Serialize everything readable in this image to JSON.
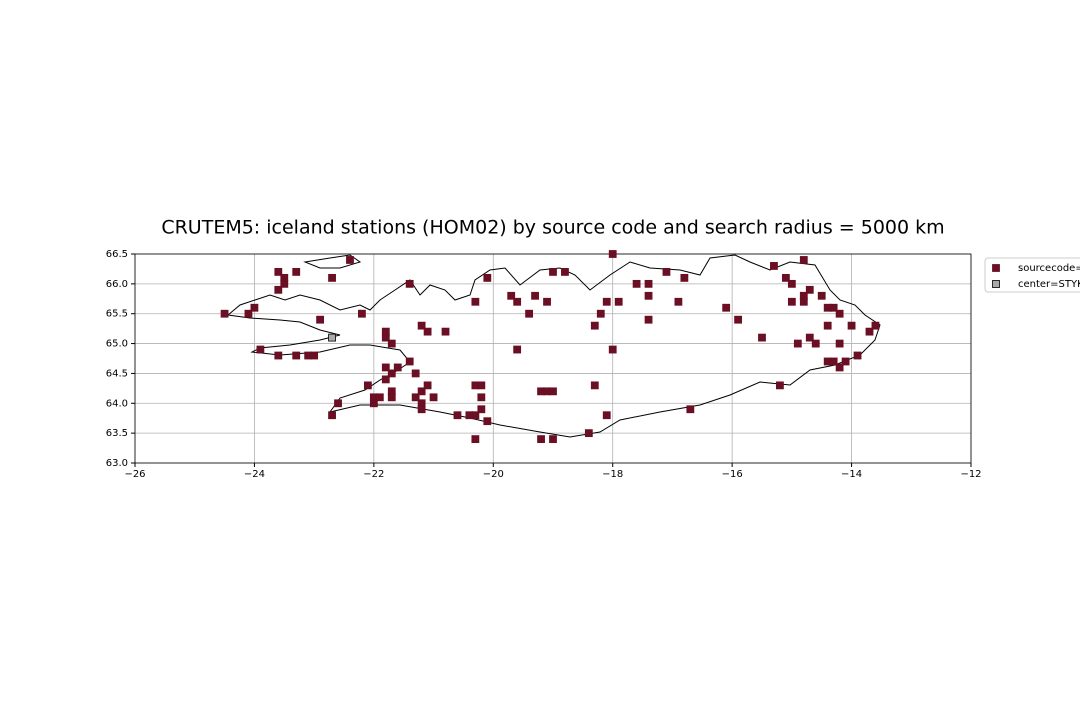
{
  "chart_data": {
    "type": "scatter",
    "title": "CRUTEM5: iceland stations (HOM02) by source code and search radius = 5000 km",
    "xlim": [
      -26,
      -12
    ],
    "ylim": [
      63,
      66.5
    ],
    "xticks": [
      {
        "value": -26,
        "label": "−26"
      },
      {
        "value": -24,
        "label": "−24"
      },
      {
        "value": -22,
        "label": "−22"
      },
      {
        "value": -20,
        "label": "−20"
      },
      {
        "value": -18,
        "label": "−18"
      },
      {
        "value": -16,
        "label": "−16"
      },
      {
        "value": -14,
        "label": "−14"
      },
      {
        "value": -12,
        "label": "−12"
      }
    ],
    "yticks": [
      {
        "value": 63,
        "label": "63.0"
      },
      63.5,
      {
        "value": 64,
        "label": "64.0"
      },
      64.5,
      {
        "value": 65,
        "label": "65.0"
      },
      65.5,
      {
        "value": 66,
        "label": "66.0"
      },
      66.5
    ],
    "grid": true,
    "legend": "outside-upper-right",
    "series": [
      {
        "name": "sourcecode=",
        "color": "#6b0f24",
        "x": [
          -24.5,
          -24.1,
          -24.0,
          -23.9,
          -23.6,
          -23.6,
          -23.6,
          -23.5,
          -23.5,
          -23.3,
          -23.3,
          -23.1,
          -23.0,
          -22.9,
          -22.7,
          -22.7,
          -22.6,
          -22.4,
          -22.2,
          -22.1,
          -22.0,
          -22.0,
          -21.9,
          -21.8,
          -21.8,
          -21.8,
          -21.8,
          -21.7,
          -21.7,
          -21.7,
          -21.7,
          -21.6,
          -21.4,
          -21.4,
          -21.3,
          -21.3,
          -21.2,
          -21.2,
          -21.2,
          -21.2,
          -21.1,
          -21.1,
          -21.0,
          -20.8,
          -20.6,
          -20.4,
          -20.3,
          -20.3,
          -20.3,
          -20.3,
          -20.2,
          -20.2,
          -20.2,
          -20.1,
          -20.1,
          -19.7,
          -19.6,
          -19.6,
          -19.4,
          -19.3,
          -19.2,
          -19.2,
          -19.1,
          -19.1,
          -19.0,
          -19.0,
          -19.0,
          -18.8,
          -18.4,
          -18.3,
          -18.3,
          -18.2,
          -18.1,
          -18.1,
          -18.0,
          -18.0,
          -17.9,
          -17.6,
          -17.4,
          -17.4,
          -17.4,
          -17.1,
          -16.9,
          -16.8,
          -16.7,
          -16.1,
          -15.9,
          -15.5,
          -15.3,
          -15.2,
          -15.1,
          -15.0,
          -15.0,
          -14.9,
          -14.8,
          -14.8,
          -14.8,
          -14.7,
          -14.7,
          -14.6,
          -14.5,
          -14.4,
          -14.4,
          -14.4,
          -14.3,
          -14.3,
          -14.2,
          -14.2,
          -14.2,
          -14.1,
          -14.0,
          -13.9,
          -13.7,
          -13.6
        ],
        "values": [
          65.5,
          65.5,
          65.6,
          64.9,
          66.2,
          65.9,
          64.8,
          66.1,
          66.0,
          66.2,
          64.8,
          64.8,
          64.8,
          65.4,
          66.1,
          63.8,
          64.0,
          66.4,
          65.5,
          64.3,
          64.1,
          64.0,
          64.1,
          65.2,
          65.1,
          64.6,
          64.4,
          65.0,
          64.5,
          64.2,
          64.1,
          64.6,
          64.7,
          66.0,
          64.5,
          64.1,
          65.3,
          64.2,
          64.0,
          63.9,
          65.2,
          64.3,
          64.1,
          65.2,
          63.8,
          63.8,
          63.8,
          64.3,
          63.4,
          65.7,
          64.3,
          64.1,
          63.9,
          63.7,
          66.1,
          65.8,
          65.7,
          64.9,
          65.5,
          65.8,
          64.2,
          63.4,
          65.7,
          64.2,
          64.2,
          66.2,
          63.4,
          66.2,
          63.5,
          65.3,
          64.3,
          65.5,
          65.7,
          63.8,
          66.5,
          64.9,
          65.7,
          66.0,
          66.0,
          65.8,
          65.4,
          66.2,
          65.7,
          66.1,
          63.9,
          65.6,
          65.4,
          65.1,
          66.3,
          64.3,
          66.1,
          66.0,
          65.7,
          65.0,
          66.4,
          65.8,
          65.7,
          65.9,
          65.1,
          65.0,
          65.8,
          65.6,
          65.3,
          64.7,
          65.6,
          64.7,
          65.5,
          65.0,
          64.6,
          64.7,
          65.3,
          64.8,
          65.2,
          65.3
        ]
      },
      {
        "name": "center=STYK",
        "color": "#aaaaaa",
        "x": [
          -22.7
        ],
        "values": [
          65.1
        ]
      }
    ]
  }
}
